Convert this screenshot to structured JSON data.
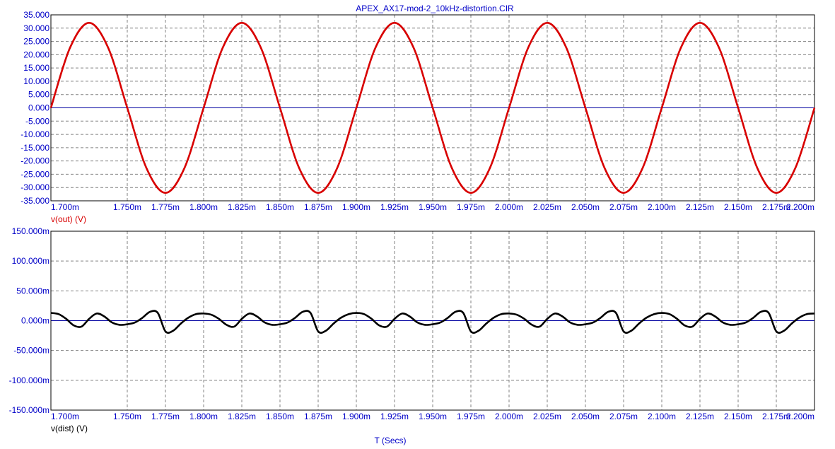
{
  "chart_data": [
    {
      "type": "line",
      "title": "APEX_AX17-mod-2_10kHz-distortion.CIR",
      "ylabel": "v(out) (V)",
      "xlim": [
        1.7,
        2.2
      ],
      "ylim": [
        -35,
        35
      ],
      "x_ticks": [
        "1.700m",
        "1.750m",
        "1.775m",
        "1.800m",
        "1.825m",
        "1.850m",
        "1.875m",
        "1.900m",
        "1.925m",
        "1.950m",
        "1.975m",
        "2.000m",
        "2.025m",
        "2.050m",
        "2.075m",
        "2.100m",
        "2.125m",
        "2.150m",
        "2.175m",
        "2.200m"
      ],
      "x_tick_values": [
        1.7,
        1.75,
        1.775,
        1.8,
        1.825,
        1.85,
        1.875,
        1.9,
        1.925,
        1.95,
        1.975,
        2.0,
        2.025,
        2.05,
        2.075,
        2.1,
        2.125,
        2.15,
        2.175,
        2.2
      ],
      "y_ticks": [
        "35.000",
        "30.000",
        "25.000",
        "20.000",
        "15.000",
        "10.000",
        "5.000",
        "0.000",
        "-5.000",
        "-10.000",
        "-15.000",
        "-20.000",
        "-25.000",
        "-30.000",
        "-35.000"
      ],
      "y_tick_values": [
        35,
        30,
        25,
        20,
        15,
        10,
        5,
        0,
        -5,
        -10,
        -15,
        -20,
        -25,
        -30,
        -35
      ],
      "grid": true,
      "series": [
        {
          "name": "v(out) (V)",
          "color": "#d80000",
          "x": [
            1.7,
            1.7125,
            1.725,
            1.7375,
            1.75,
            1.7625,
            1.775,
            1.7875,
            1.8,
            1.8125,
            1.825,
            1.8375,
            1.85,
            1.8625,
            1.875,
            1.8875,
            1.9,
            1.9125,
            1.925,
            1.9375,
            1.95,
            1.9625,
            1.975,
            1.9875,
            2.0,
            2.0125,
            2.025,
            2.0375,
            2.05,
            2.0625,
            2.075,
            2.0875,
            2.1,
            2.1125,
            2.125,
            2.1375,
            2.15,
            2.1625,
            2.175,
            2.1875,
            2.2
          ],
          "y": [
            0,
            22.6,
            32,
            22.6,
            0,
            -22.6,
            -32,
            -22.6,
            0,
            22.6,
            32,
            22.6,
            0,
            -22.6,
            -32,
            -22.6,
            0,
            22.6,
            32,
            22.6,
            0,
            -22.6,
            -32,
            -22.6,
            0,
            22.6,
            32,
            22.6,
            0,
            -22.6,
            -32,
            -22.6,
            0,
            22.6,
            32,
            22.6,
            0,
            -22.6,
            -32,
            -22.6,
            0
          ]
        }
      ]
    },
    {
      "type": "line",
      "ylabel": "v(dist) (V)",
      "xlabel": "T (Secs)",
      "xlim": [
        1.7,
        2.2
      ],
      "ylim": [
        -150,
        150
      ],
      "x_ticks": [
        "1.700m",
        "1.750m",
        "1.775m",
        "1.800m",
        "1.825m",
        "1.850m",
        "1.875m",
        "1.900m",
        "1.925m",
        "1.950m",
        "1.975m",
        "2.000m",
        "2.025m",
        "2.050m",
        "2.075m",
        "2.100m",
        "2.125m",
        "2.150m",
        "2.175m",
        "2.200m"
      ],
      "x_tick_values": [
        1.7,
        1.75,
        1.775,
        1.8,
        1.825,
        1.85,
        1.875,
        1.9,
        1.925,
        1.95,
        1.975,
        2.0,
        2.025,
        2.05,
        2.075,
        2.1,
        2.125,
        2.15,
        2.175,
        2.2
      ],
      "y_ticks": [
        "150.000m",
        "100.000m",
        "50.000m",
        "0.000m",
        "-50.000m",
        "-100.000m",
        "-150.000m"
      ],
      "y_tick_values": [
        150,
        100,
        50,
        0,
        -50,
        -100,
        -150
      ],
      "grid": true,
      "series": [
        {
          "name": "v(dist) (V)",
          "color": "#000000",
          "x": [
            1.7,
            1.705,
            1.71,
            1.715,
            1.72,
            1.725,
            1.73,
            1.735,
            1.74,
            1.745,
            1.75,
            1.755,
            1.76,
            1.765,
            1.77,
            1.775,
            1.78,
            1.785,
            1.79,
            1.795,
            1.8,
            1.805,
            1.81,
            1.815,
            1.82,
            1.825,
            1.83,
            1.835,
            1.84,
            1.845,
            1.85,
            1.855,
            1.86,
            1.865,
            1.87,
            1.875,
            1.88,
            1.885,
            1.89,
            1.895,
            1.9
          ],
          "y": [
            13,
            11,
            3,
            -8,
            -10,
            3,
            12,
            7,
            -3,
            -7,
            -6,
            -3,
            5,
            15,
            13,
            -18,
            -17,
            -5,
            5,
            11,
            12,
            10,
            3,
            -7,
            -10,
            3,
            12,
            7,
            -3,
            -7,
            -6,
            -3,
            5,
            15,
            13,
            -18,
            -17,
            -5,
            5,
            11,
            13
          ]
        }
      ]
    }
  ]
}
